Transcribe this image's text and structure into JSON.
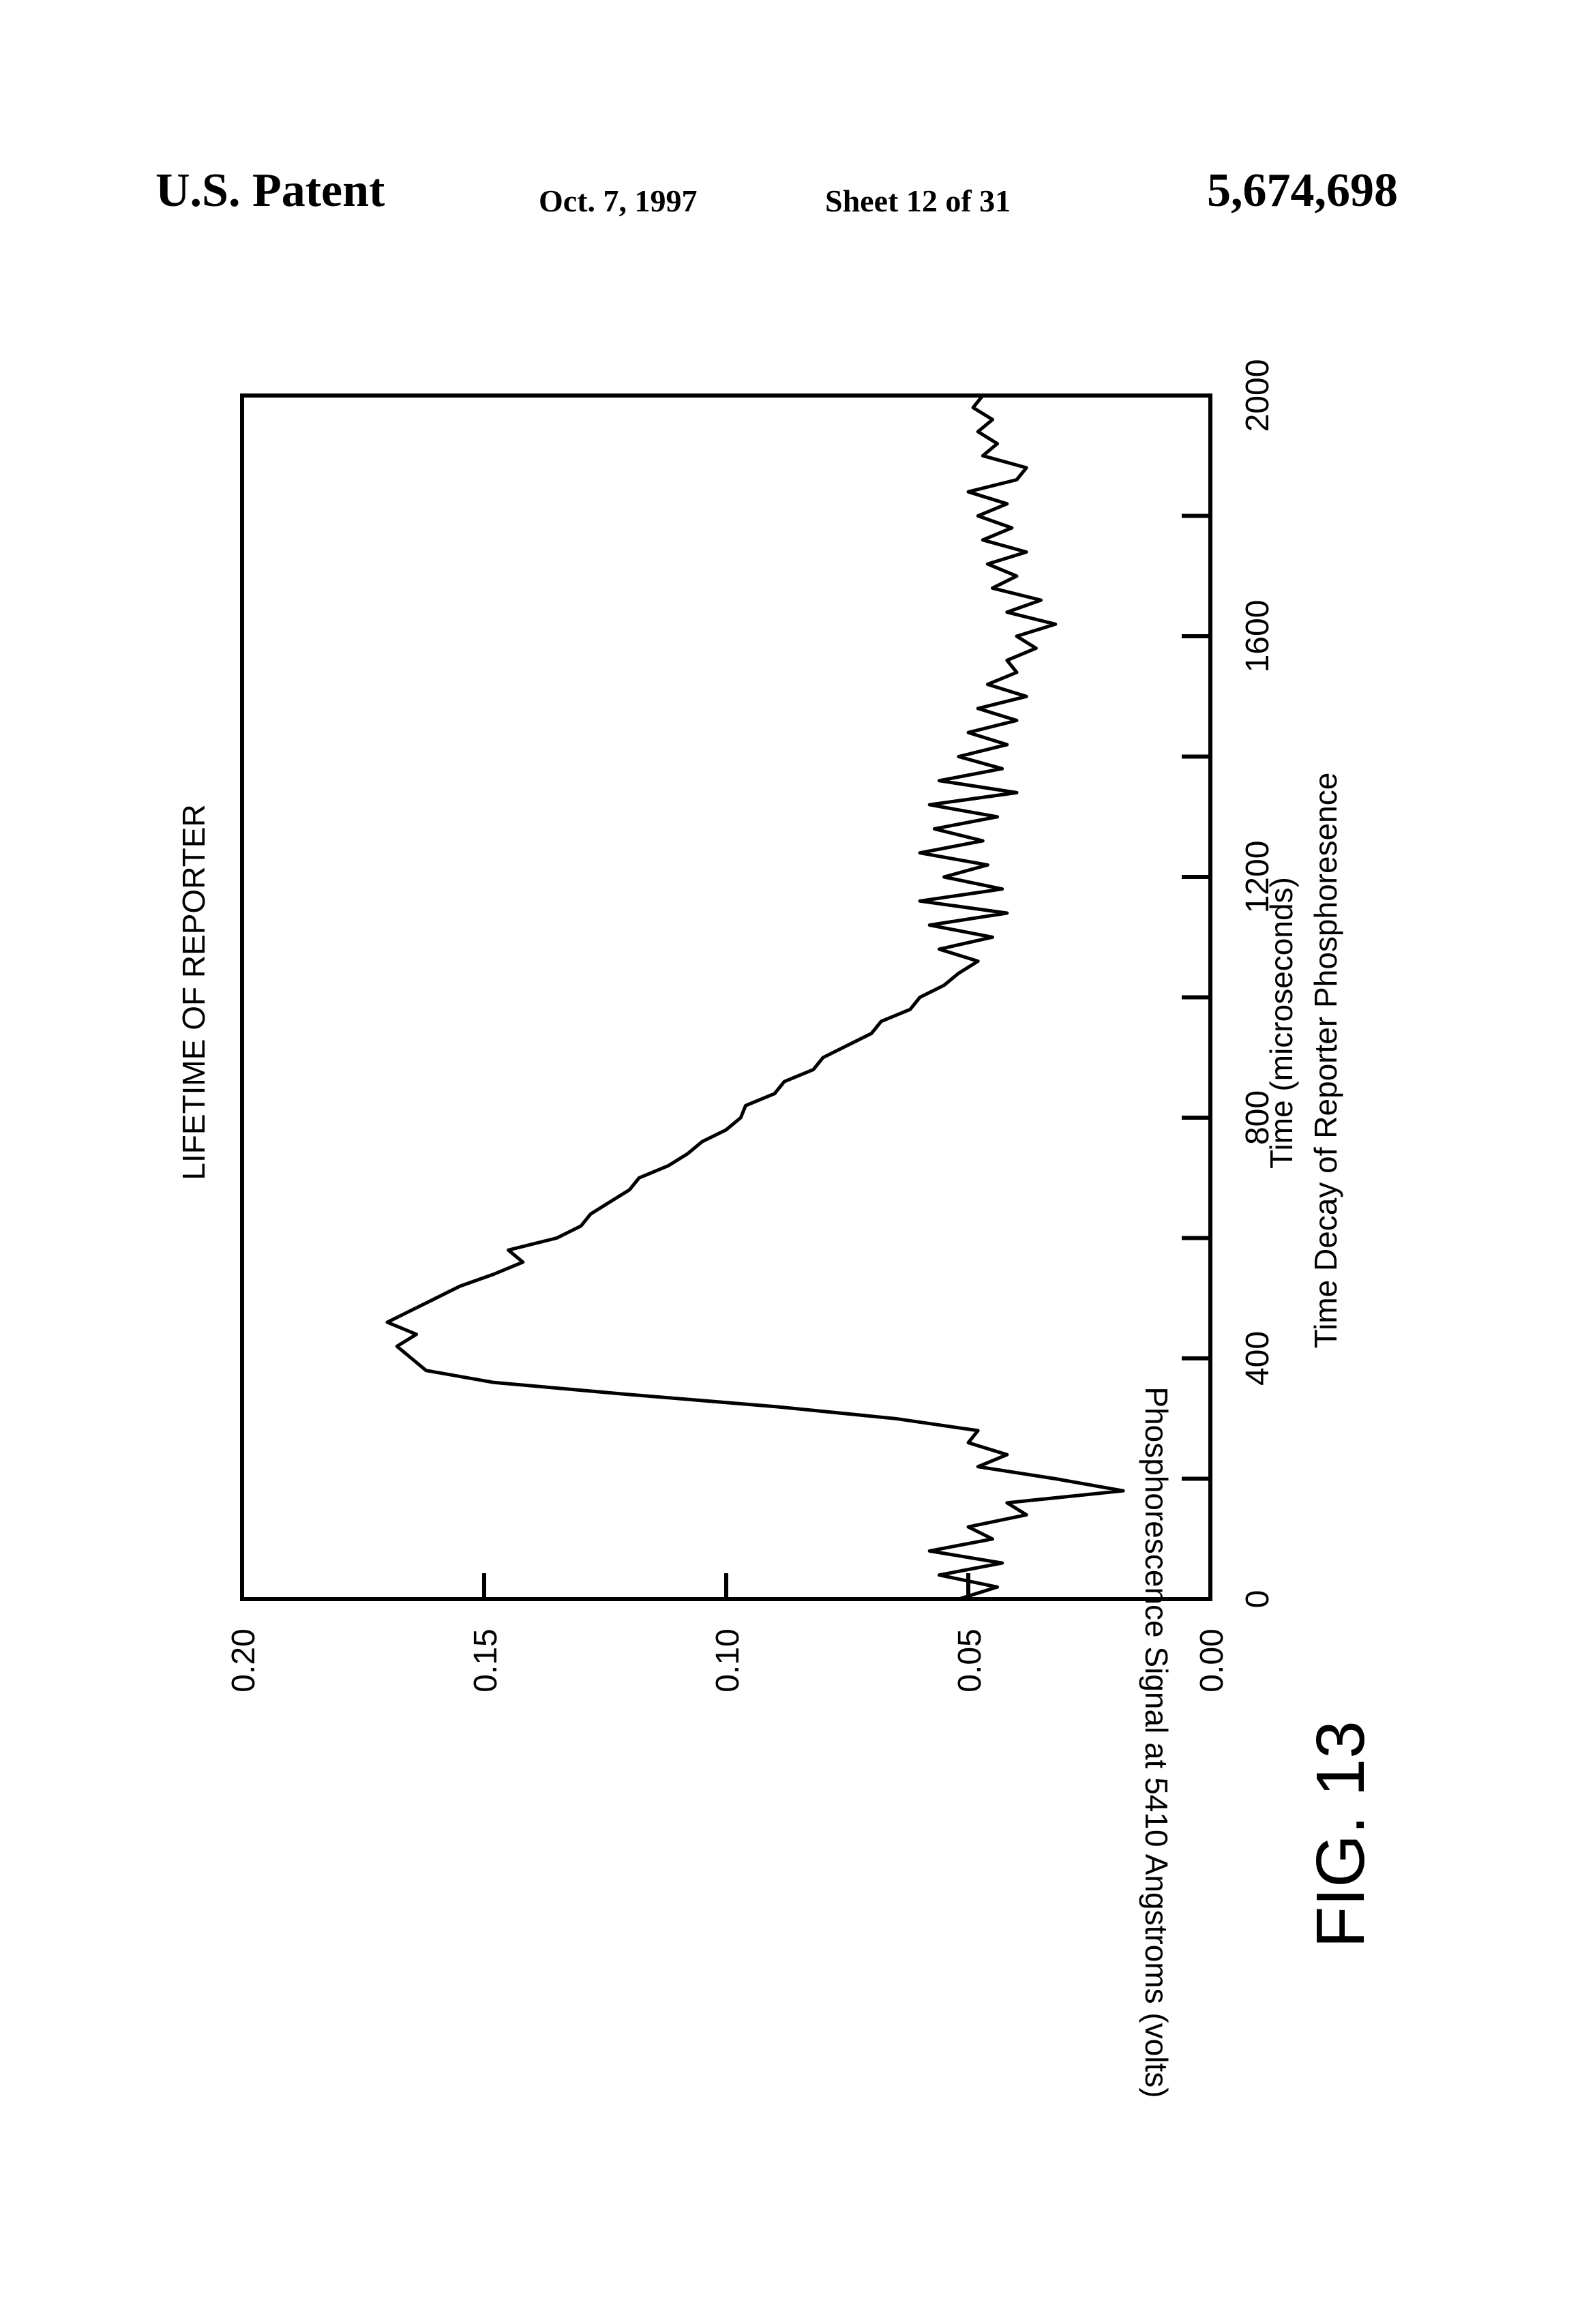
{
  "header": {
    "left": "U.S. Patent",
    "date": "Oct. 7, 1997",
    "sheet": "Sheet 12 of 31",
    "patent_number": "5,674,698"
  },
  "figure_label": "FIG. 13",
  "chart_data": {
    "type": "line",
    "orientation": "rotated 90° counter-clockwise on the page",
    "title": "LIFETIME OF REPORTER",
    "xlabel": "Time (microseconds)",
    "subtitle": "Time Decay of Reporter Phosphoresence",
    "ylabel": "Phosphorescence Signal at 5410 Angstroms (volts)",
    "xlim": [
      0,
      2000
    ],
    "ylim": [
      0.0,
      0.2
    ],
    "x_ticks": [
      0,
      400,
      800,
      1200,
      1600,
      2000
    ],
    "y_ticks": [
      "0.00",
      "0.05",
      "0.10",
      "0.15",
      "0.20"
    ],
    "grid": false,
    "series": [
      {
        "x": [
          0,
          20,
          40,
          60,
          80,
          100,
          120,
          140,
          160,
          180,
          200,
          220,
          240,
          260,
          280,
          300,
          320,
          340,
          360,
          380,
          400,
          420,
          440,
          460,
          480,
          500,
          520,
          540,
          560,
          580,
          600,
          620,
          640,
          660,
          680,
          700,
          720,
          740,
          760,
          780,
          800,
          820,
          840,
          860,
          880,
          900,
          920,
          940,
          960,
          980,
          1000,
          1020,
          1040,
          1060,
          1080,
          1100,
          1120,
          1140,
          1160,
          1180,
          1200,
          1220,
          1240,
          1260,
          1280,
          1300,
          1320,
          1340,
          1360,
          1380,
          1400,
          1420,
          1440,
          1460,
          1480,
          1500,
          1520,
          1540,
          1560,
          1580,
          1600,
          1620,
          1640,
          1660,
          1680,
          1700,
          1720,
          1740,
          1760,
          1780,
          1800,
          1820,
          1840,
          1860,
          1880,
          1900,
          1920,
          1940,
          1960,
          1980,
          2000
        ],
        "y": [
          0.052,
          0.044,
          0.056,
          0.043,
          0.058,
          0.045,
          0.05,
          0.038,
          0.042,
          0.018,
          0.032,
          0.048,
          0.042,
          0.05,
          0.048,
          0.065,
          0.09,
          0.12,
          0.148,
          0.162,
          0.165,
          0.168,
          0.164,
          0.17,
          0.165,
          0.16,
          0.155,
          0.148,
          0.142,
          0.145,
          0.135,
          0.13,
          0.128,
          0.124,
          0.12,
          0.118,
          0.112,
          0.108,
          0.105,
          0.1,
          0.097,
          0.096,
          0.09,
          0.088,
          0.082,
          0.08,
          0.075,
          0.07,
          0.068,
          0.062,
          0.06,
          0.055,
          0.052,
          0.048,
          0.056,
          0.045,
          0.058,
          0.042,
          0.06,
          0.043,
          0.055,
          0.046,
          0.06,
          0.047,
          0.057,
          0.044,
          0.058,
          0.04,
          0.056,
          0.043,
          0.052,
          0.042,
          0.05,
          0.04,
          0.048,
          0.038,
          0.046,
          0.04,
          0.042,
          0.036,
          0.04,
          0.032,
          0.042,
          0.035,
          0.045,
          0.04,
          0.046,
          0.038,
          0.047,
          0.041,
          0.048,
          0.042,
          0.05,
          0.04,
          0.038,
          0.047,
          0.044,
          0.048,
          0.045,
          0.049,
          0.047
        ]
      }
    ]
  }
}
